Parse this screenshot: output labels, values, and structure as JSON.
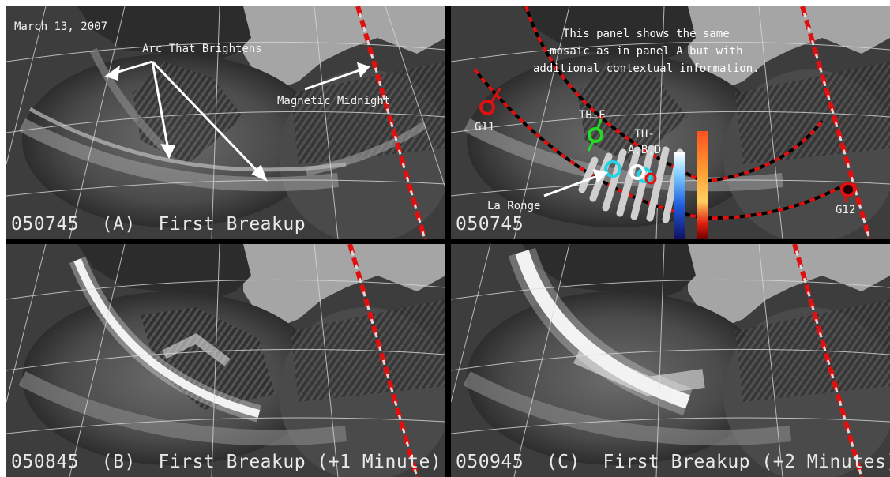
{
  "figure": {
    "date": "March 13, 2007",
    "panels": [
      {
        "id": "A",
        "timestamp": "050745",
        "label": "(A)",
        "title": "First Breakup"
      },
      {
        "id": "D",
        "timestamp": "050745"
      },
      {
        "id": "B",
        "timestamp": "050845",
        "label": "(B)",
        "title": "First Breakup (+1 Minute)"
      },
      {
        "id": "C",
        "timestamp": "050945",
        "label": "(C)",
        "title": "First Breakup (+2 Minutes)"
      }
    ],
    "annotations": {
      "arc_brightens": "Arc That Brightens",
      "magnetic_midnight": "Magnetic Midnight",
      "context_note": "This panel shows the same\nmosaic as in panel A but with\nadditional contextual information.",
      "g11": "G11",
      "g12": "G12",
      "th_e": "TH-E",
      "th_abd": "TH-\nA,B,D",
      "la_ronge": "La Ronge"
    },
    "colors": {
      "midnight_line": "#e01010",
      "th_e": "#22dd22",
      "th_abd": "#ffffff",
      "la_ronge_ring": "#22d4e8",
      "g11_g12": "#e01010"
    }
  }
}
